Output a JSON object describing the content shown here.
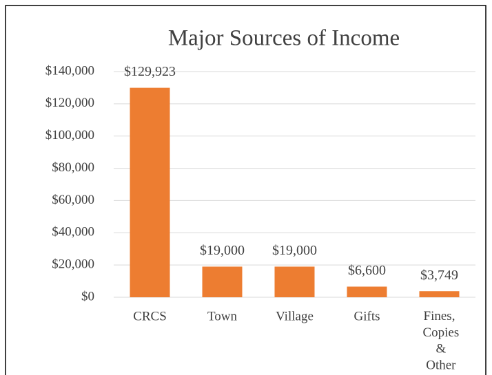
{
  "chart_data": {
    "type": "bar",
    "title": "Major Sources of Income",
    "categories": [
      "CRCS",
      "Town",
      "Village",
      "Gifts",
      "Fines, Copies & Other"
    ],
    "values": [
      129923,
      19000,
      19000,
      6600,
      3749
    ],
    "value_labels": [
      "$129,923",
      "$19,000",
      "$19,000",
      "$6,600",
      "$3,749"
    ],
    "color": "#ed7d31",
    "ylim": [
      0,
      140000
    ],
    "yticks": [
      {
        "value": 0,
        "label": "$0"
      },
      {
        "value": 20000,
        "label": "$20,000"
      },
      {
        "value": 40000,
        "label": "$40,000"
      },
      {
        "value": 60000,
        "label": "$60,000"
      },
      {
        "value": 80000,
        "label": "$80,000"
      },
      {
        "value": 100000,
        "label": "$100,000"
      },
      {
        "value": 120000,
        "label": "$120,000"
      },
      {
        "value": 140000,
        "label": "$140,000"
      }
    ],
    "grid": true
  }
}
